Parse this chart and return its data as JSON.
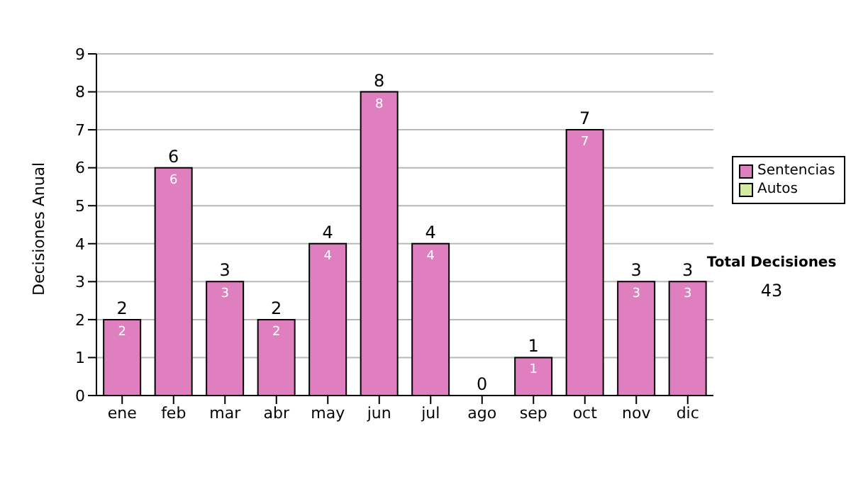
{
  "chart_data": {
    "type": "bar",
    "stacked": true,
    "ylabel": "Decisiones Anual",
    "categories": [
      "ene",
      "feb",
      "mar",
      "abr",
      "may",
      "jun",
      "jul",
      "ago",
      "sep",
      "oct",
      "nov",
      "dic"
    ],
    "series": [
      {
        "name": "Sentencias",
        "color": "#e07fc0",
        "values": [
          2,
          6,
          3,
          2,
          4,
          8,
          4,
          0,
          1,
          7,
          3,
          3
        ],
        "value_labels": [
          "2",
          "6",
          "3",
          "2",
          "4",
          "8",
          "4",
          null,
          "1",
          "7",
          "3",
          "3"
        ]
      },
      {
        "name": "Autos",
        "color": "#d4eba4",
        "values": [
          0,
          0,
          0,
          0,
          0,
          0,
          0,
          0,
          0,
          0,
          0,
          0
        ]
      }
    ],
    "totals": [
      "2",
      "6",
      "3",
      "2",
      "4",
      "8",
      "4",
      "0",
      "1",
      "7",
      "3",
      "3"
    ],
    "ylim": [
      0,
      9
    ],
    "yticks": [
      0,
      1,
      2,
      3,
      4,
      5,
      6,
      7,
      8,
      9
    ],
    "grid": "y",
    "legend": "right",
    "annotations": [
      "Total Decisiones",
      "43"
    ]
  }
}
